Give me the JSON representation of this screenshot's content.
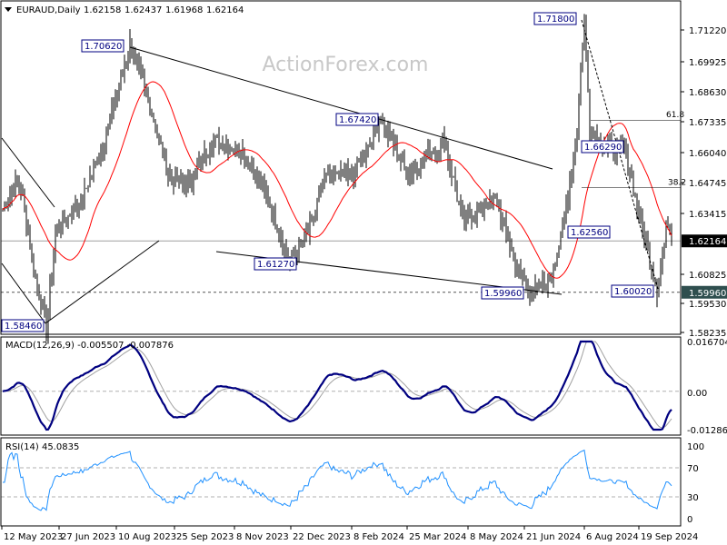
{
  "header": {
    "symbol": "EURAUD,Daily",
    "open": "1.62158",
    "high": "1.62437",
    "low": "1.61968",
    "close": "1.62164"
  },
  "watermark": "ActionForex.com",
  "chart_data": {
    "type": "ohlc",
    "symbol": "EURAUD",
    "timeframe": "Daily",
    "price_axis": {
      "ticks": [
        "1.71220",
        "1.69925",
        "1.68630",
        "1.67335",
        "1.66040",
        "1.64745",
        "1.63415",
        "1.60825",
        "1.59530",
        "1.58235"
      ],
      "range": [
        1.58235,
        1.7122
      ]
    },
    "current_price": "1.62164",
    "marker_price": "1.59960",
    "price_path": [
      [
        0,
        1.635
      ],
      [
        8,
        1.648
      ],
      [
        11,
        1.64
      ],
      [
        18,
        1.605
      ],
      [
        24,
        1.5846
      ],
      [
        29,
        1.625
      ],
      [
        44,
        1.64
      ],
      [
        56,
        1.665
      ],
      [
        70,
        1.7062
      ],
      [
        81,
        1.68
      ],
      [
        91,
        1.65
      ],
      [
        101,
        1.645
      ],
      [
        116,
        1.665
      ],
      [
        133,
        1.66
      ],
      [
        148,
        1.635
      ],
      [
        158,
        1.6127
      ],
      [
        168,
        1.625
      ],
      [
        178,
        1.65
      ],
      [
        193,
        1.65
      ],
      [
        208,
        1.6742
      ],
      [
        223,
        1.65
      ],
      [
        243,
        1.665
      ],
      [
        253,
        1.63
      ],
      [
        271,
        1.64
      ],
      [
        283,
        1.61
      ],
      [
        291,
        1.5996
      ],
      [
        301,
        1.605
      ],
      [
        308,
        1.6256
      ],
      [
        316,
        1.67
      ],
      [
        320,
        1.718
      ],
      [
        323,
        1.67
      ],
      [
        331,
        1.6629
      ],
      [
        343,
        1.66
      ],
      [
        348,
        1.64
      ],
      [
        360,
        1.6002
      ],
      [
        366,
        1.63
      ],
      [
        368,
        1.6216
      ]
    ],
    "annotations": [
      "1.70620",
      "1.71800",
      "1.67420",
      "1.66290",
      "1.62560",
      "1.61270",
      "1.59960",
      "1.60020",
      "1.58460"
    ],
    "fib_levels": [
      {
        "label": "61.8",
        "price": 1.6735
      },
      {
        "label": "38.2",
        "price": 1.6445
      }
    ],
    "x_ticks": [
      "12 May 2023",
      "27 Jun 2023",
      "10 Aug 2023",
      "25 Sep 2023",
      "8 Nov 2023",
      "22 Dec 2023",
      "8 Feb 2024",
      "25 Mar 2024",
      "8 May 2024",
      "21 Jun 2024",
      "6 Aug 2024",
      "19 Sep 2024"
    ],
    "macd": {
      "label": "MACD(12,26,9) -0.005507 -0.007876",
      "ticks": [
        "0.016704",
        "0.00",
        "-0.012869"
      ],
      "range": [
        -0.012869,
        0.016704
      ]
    },
    "rsi": {
      "label": "RSI(14) 45.0835",
      "ticks": [
        "100",
        "70",
        "30",
        "0"
      ],
      "levels": [
        70,
        30
      ]
    },
    "colors": {
      "ma": "#ff0000",
      "macd": "#000080",
      "signal": "#a0a0a0",
      "rsi": "#1e90ff",
      "bars": "#000000"
    }
  }
}
